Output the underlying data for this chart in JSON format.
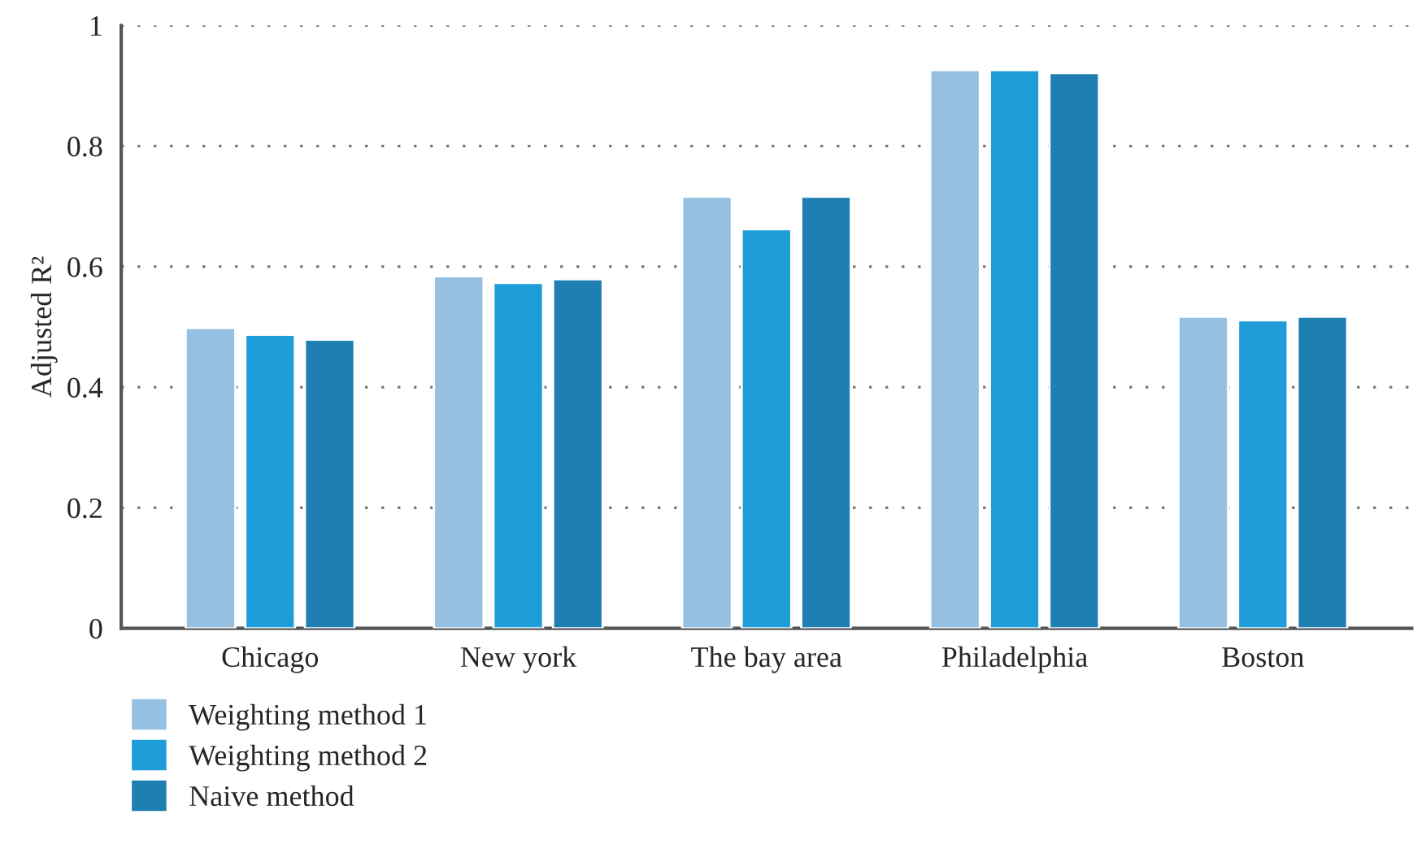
{
  "chart_data": {
    "type": "bar",
    "ylabel": "Adjusted R²",
    "categories": [
      "Chicago",
      "New york",
      "The bay area",
      "Philadelphia",
      "Boston"
    ],
    "series": [
      {
        "name": "Weighting method 1",
        "color": "#95c0e1",
        "values": [
          0.498,
          0.584,
          0.716,
          0.926,
          0.517
        ]
      },
      {
        "name": "Weighting method 2",
        "color": "#1e9dd8",
        "values": [
          0.487,
          0.573,
          0.662,
          0.926,
          0.511
        ]
      },
      {
        "name": "Naive method",
        "color": "#1f7fb2",
        "values": [
          0.479,
          0.579,
          0.716,
          0.921,
          0.517
        ]
      }
    ],
    "ylim": [
      0,
      1
    ],
    "yticks": [
      0,
      0.2,
      0.4,
      0.6,
      0.8,
      1
    ],
    "grid": "y",
    "legend": "bottom left"
  }
}
